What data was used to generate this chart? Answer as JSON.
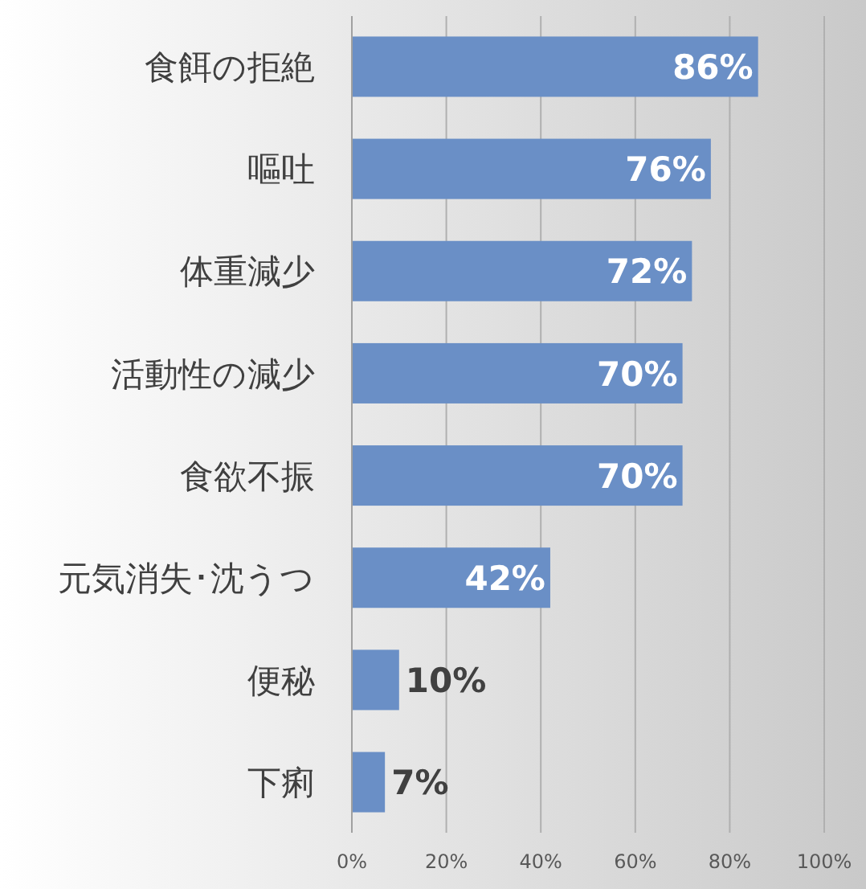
{
  "chart_data": {
    "type": "bar",
    "orientation": "horizontal",
    "categories": [
      "食餌の拒絶",
      "嘔吐",
      "体重減少",
      "活動性の減少",
      "食欲不振",
      "元気消失･沈うつ",
      "便秘",
      "下痢"
    ],
    "values": [
      86,
      76,
      72,
      70,
      70,
      42,
      10,
      7
    ],
    "value_labels": [
      "86%",
      "76%",
      "72%",
      "70%",
      "70%",
      "42%",
      "10%",
      "7%"
    ],
    "color": "#6a8fc6",
    "xlim": [
      0,
      100
    ],
    "xticks": [
      {
        "value": 0,
        "label": "0%"
      },
      {
        "value": 20,
        "label": "20%"
      },
      {
        "value": 40,
        "label": "40%"
      },
      {
        "value": 60,
        "label": "60%"
      },
      {
        "value": 80,
        "label": "80%"
      },
      {
        "value": 100,
        "label": "100%"
      }
    ],
    "grid": "x"
  }
}
